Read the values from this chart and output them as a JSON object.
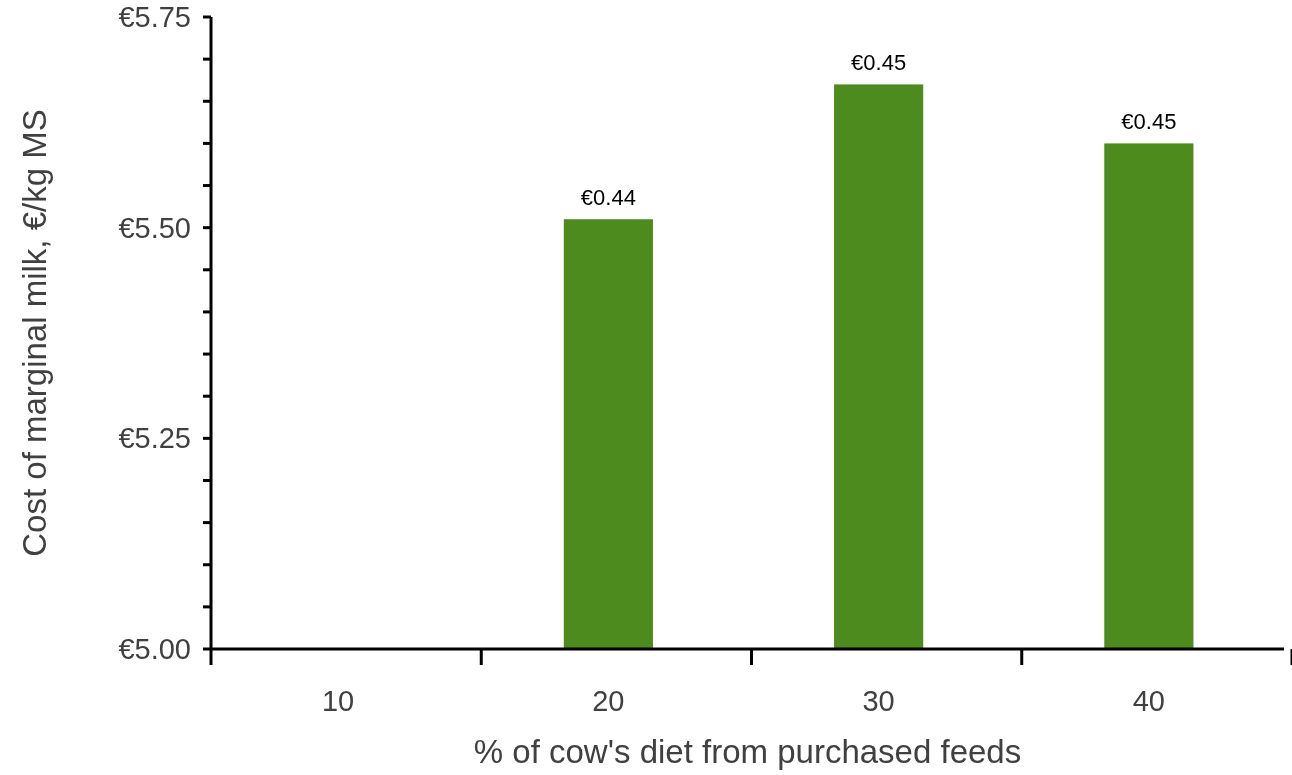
{
  "chart_data": {
    "type": "bar",
    "xlabel": "% of cow's diet from purchased feeds",
    "ylabel": "Cost of marginal milk, €/kg MS",
    "categories": [
      "10",
      "20",
      "30",
      "40"
    ],
    "values": [
      null,
      5.51,
      5.67,
      5.6
    ],
    "annotations": [
      {
        "text": "€0.44",
        "x": "20",
        "y": 5.51
      },
      {
        "text": "€0.45",
        "x": "30",
        "y": 5.67
      },
      {
        "text": "€0.45",
        "x": "40",
        "y": 5.6
      }
    ],
    "color": "#4e8b1f",
    "ylim": [
      5,
      5.75
    ],
    "yticks": [
      {
        "value": 5,
        "label": "€5.00"
      },
      {
        "value": 5.05,
        "label": null
      },
      {
        "value": 5.1,
        "label": null
      },
      {
        "value": 5.15,
        "label": null
      },
      {
        "value": 5.2,
        "label": null
      },
      {
        "value": 5.25,
        "label": "€5.25"
      },
      {
        "value": 5.3,
        "label": null
      },
      {
        "value": 5.35,
        "label": null
      },
      {
        "value": 5.4,
        "label": null
      },
      {
        "value": 5.45,
        "label": null
      },
      {
        "value": 5.5,
        "label": "€5.50"
      },
      {
        "value": 5.55,
        "label": null
      },
      {
        "value": 5.6,
        "label": null
      },
      {
        "value": 5.65,
        "label": null
      },
      {
        "value": 5.7,
        "label": null
      },
      {
        "value": 5.75,
        "label": "€5.75"
      }
    ],
    "grid": false
  }
}
